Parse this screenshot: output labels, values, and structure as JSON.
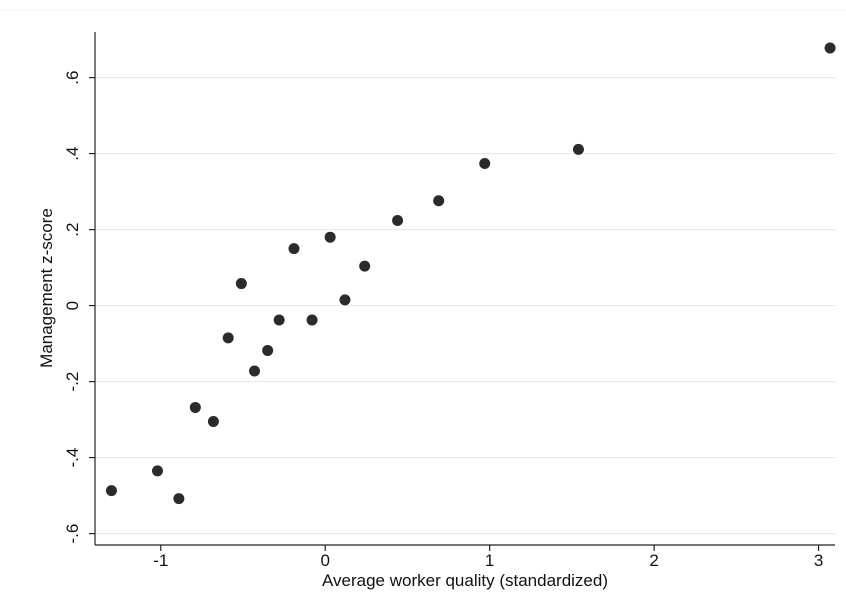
{
  "chart_data": {
    "type": "scatter",
    "title": "",
    "xlabel": "Average worker quality (standardized)",
    "ylabel": "Management z-score",
    "xlim": [
      -1.4,
      3.1
    ],
    "ylim": [
      -0.63,
      0.72
    ],
    "xticks": [
      {
        "value": -1,
        "label": "-1"
      },
      {
        "value": 0,
        "label": "0"
      },
      {
        "value": 1,
        "label": "1"
      },
      {
        "value": 2,
        "label": "2"
      },
      {
        "value": 3,
        "label": "3"
      }
    ],
    "yticks": [
      {
        "value": -0.6,
        "label": "-.6"
      },
      {
        "value": -0.4,
        "label": "-.4"
      },
      {
        "value": -0.2,
        "label": "-.2"
      },
      {
        "value": 0,
        "label": "0"
      },
      {
        "value": 0.2,
        "label": ".2"
      },
      {
        "value": 0.4,
        "label": ".4"
      },
      {
        "value": 0.6,
        "label": ".6"
      }
    ],
    "grid": "horizontal",
    "marker_color": "#2b2b2b",
    "grid_color": "#e6e6e6",
    "points": [
      {
        "x": -1.3,
        "y": -0.487
      },
      {
        "x": -1.02,
        "y": -0.435
      },
      {
        "x": -0.89,
        "y": -0.508
      },
      {
        "x": -0.79,
        "y": -0.268
      },
      {
        "x": -0.68,
        "y": -0.305
      },
      {
        "x": -0.59,
        "y": -0.085
      },
      {
        "x": -0.51,
        "y": 0.058
      },
      {
        "x": -0.43,
        "y": -0.172
      },
      {
        "x": -0.35,
        "y": -0.118
      },
      {
        "x": -0.28,
        "y": -0.038
      },
      {
        "x": -0.19,
        "y": 0.15
      },
      {
        "x": -0.08,
        "y": -0.038
      },
      {
        "x": 0.03,
        "y": 0.18
      },
      {
        "x": 0.12,
        "y": 0.015
      },
      {
        "x": 0.24,
        "y": 0.104
      },
      {
        "x": 0.44,
        "y": 0.224
      },
      {
        "x": 0.69,
        "y": 0.276
      },
      {
        "x": 0.97,
        "y": 0.374
      },
      {
        "x": 1.54,
        "y": 0.411
      },
      {
        "x": 3.07,
        "y": 0.678
      }
    ]
  }
}
